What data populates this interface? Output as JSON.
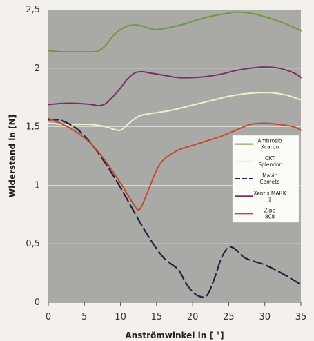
{
  "chart_data": {
    "type": "line",
    "xlabel": "Anströmwinkel in [ °]",
    "ylabel": "Widerstand in [N]",
    "xlim": [
      0,
      35
    ],
    "ylim": [
      0,
      2.5
    ],
    "x_ticks": [
      {
        "value": 0,
        "label": "0"
      },
      {
        "value": 5,
        "label": "5"
      },
      {
        "value": 10,
        "label": "10"
      },
      {
        "value": 15,
        "label": "15"
      },
      {
        "value": 20,
        "label": "20"
      },
      {
        "value": 25,
        "label": "25"
      },
      {
        "value": 30,
        "label": "30"
      },
      {
        "value": 35,
        "label": "35"
      }
    ],
    "y_ticks": [
      {
        "value": 0,
        "label": "0"
      },
      {
        "value": 0.5,
        "label": "0,5"
      },
      {
        "value": 1,
        "label": "1"
      },
      {
        "value": 1.5,
        "label": "1,5"
      },
      {
        "value": 2,
        "label": "2"
      },
      {
        "value": 2.5,
        "label": "2,5"
      }
    ],
    "grid": "horizontal",
    "legend_position": "right",
    "background_color": "#a9aaa6",
    "series": [
      {
        "name": "Ambrosio Xcarbo",
        "color": "#6f9a3e",
        "dash": "solid",
        "x": [
          0,
          2,
          4,
          6,
          7,
          8,
          9,
          10,
          11,
          12,
          13,
          14,
          15,
          17,
          19,
          21,
          23,
          25,
          26,
          28,
          30,
          32,
          34,
          35
        ],
        "y": [
          2.15,
          2.14,
          2.14,
          2.14,
          2.15,
          2.2,
          2.28,
          2.33,
          2.36,
          2.37,
          2.36,
          2.34,
          2.33,
          2.35,
          2.38,
          2.42,
          2.45,
          2.47,
          2.48,
          2.47,
          2.44,
          2.4,
          2.35,
          2.32
        ]
      },
      {
        "name": "CKT Splendor",
        "color": "#f0efd0",
        "dash": "solid",
        "x": [
          0,
          2,
          4,
          6,
          8,
          9,
          10,
          11,
          12,
          13,
          15,
          17,
          19,
          21,
          23,
          25,
          27,
          29,
          31,
          33,
          35
        ],
        "y": [
          1.53,
          1.52,
          1.52,
          1.52,
          1.5,
          1.48,
          1.47,
          1.52,
          1.57,
          1.6,
          1.62,
          1.64,
          1.67,
          1.7,
          1.73,
          1.76,
          1.78,
          1.79,
          1.79,
          1.77,
          1.73
        ]
      },
      {
        "name": "Mavic Comete",
        "color": "#1b2440",
        "dash": "dashed",
        "x": [
          0,
          1,
          2,
          4,
          6,
          8,
          10,
          12,
          14,
          16,
          18,
          19,
          20,
          21,
          22,
          23,
          24,
          25,
          26,
          27,
          28,
          30,
          32,
          34,
          35
        ],
        "y": [
          1.56,
          1.56,
          1.55,
          1.48,
          1.35,
          1.18,
          0.98,
          0.76,
          0.55,
          0.38,
          0.28,
          0.17,
          0.09,
          0.05,
          0.06,
          0.2,
          0.38,
          0.47,
          0.45,
          0.39,
          0.36,
          0.32,
          0.26,
          0.19,
          0.15
        ]
      },
      {
        "name": "Xentis MARK 1",
        "color": "#7a2f6a",
        "dash": "solid",
        "x": [
          0,
          2,
          4,
          6,
          7,
          8,
          9,
          10,
          11,
          12,
          13,
          14,
          16,
          18,
          20,
          22,
          24,
          26,
          28,
          30,
          32,
          34,
          35
        ],
        "y": [
          1.69,
          1.7,
          1.7,
          1.69,
          1.68,
          1.7,
          1.76,
          1.83,
          1.91,
          1.96,
          1.97,
          1.96,
          1.94,
          1.92,
          1.92,
          1.93,
          1.95,
          1.98,
          2.0,
          2.01,
          2.0,
          1.96,
          1.92
        ]
      },
      {
        "name": "Zipp 808",
        "color": "#c8492e",
        "dash": "solid",
        "x": [
          0,
          2,
          4,
          6,
          8,
          10,
          11,
          12,
          12.5,
          13,
          14,
          15,
          16,
          18,
          20,
          22,
          24,
          26,
          28,
          30,
          32,
          34,
          35
        ],
        "y": [
          1.57,
          1.52,
          1.45,
          1.35,
          1.2,
          1.02,
          0.92,
          0.82,
          0.79,
          0.83,
          0.98,
          1.13,
          1.22,
          1.3,
          1.34,
          1.38,
          1.42,
          1.47,
          1.52,
          1.53,
          1.52,
          1.5,
          1.47
        ]
      }
    ]
  }
}
